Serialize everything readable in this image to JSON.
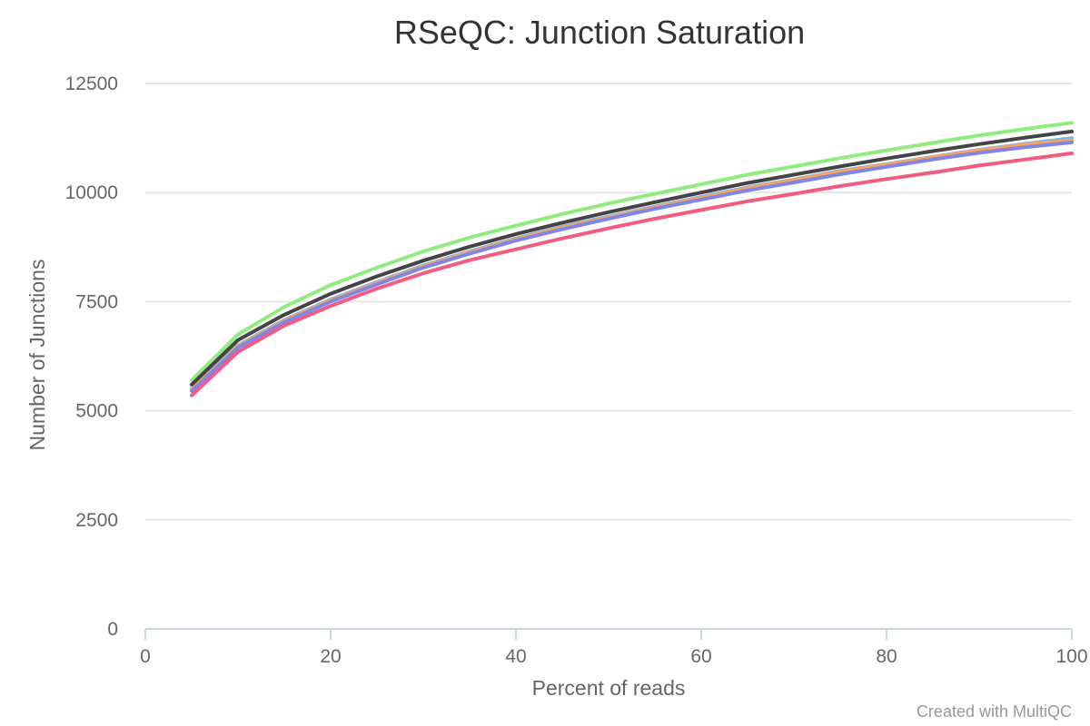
{
  "chart_data": {
    "type": "line",
    "title": "RSeQC: Junction Saturation",
    "xlabel": "Percent of reads",
    "ylabel": "Number of Junctions",
    "xlim": [
      0,
      100
    ],
    "ylim": [
      0,
      12500
    ],
    "xticks": [
      "0",
      "20",
      "40",
      "60",
      "80",
      "100"
    ],
    "yticks": [
      "0",
      "2500",
      "5000",
      "7500",
      "10000",
      "12500"
    ],
    "grid": true,
    "credits": "Created with MultiQC",
    "x": [
      5,
      10,
      15,
      20,
      25,
      30,
      35,
      40,
      45,
      50,
      55,
      60,
      65,
      70,
      75,
      80,
      85,
      90,
      95,
      100
    ],
    "series": [
      {
        "color": "#7cb5ec",
        "values": [
          5500,
          6500,
          7080,
          7550,
          7950,
          8330,
          8650,
          8950,
          9220,
          9450,
          9680,
          9900,
          10120,
          10300,
          10500,
          10650,
          10820,
          10980,
          11120,
          11250
        ]
      },
      {
        "color": "#f7a35c",
        "values": [
          5480,
          6480,
          7060,
          7530,
          7930,
          8310,
          8630,
          8930,
          9200,
          9430,
          9660,
          9880,
          10100,
          10290,
          10480,
          10640,
          10810,
          10970,
          11100,
          11200
        ]
      },
      {
        "color": "#8085e9",
        "values": [
          5450,
          6450,
          7030,
          7500,
          7900,
          8280,
          8600,
          8900,
          9160,
          9400,
          9630,
          9840,
          10050,
          10230,
          10420,
          10590,
          10760,
          10910,
          11040,
          11150
        ]
      },
      {
        "color": "#f15c80",
        "values": [
          5350,
          6350,
          6950,
          7400,
          7800,
          8150,
          8450,
          8700,
          8950,
          9180,
          9400,
          9600,
          9800,
          9970,
          10150,
          10310,
          10460,
          10620,
          10760,
          10900
        ]
      },
      {
        "color": "#90ed7d",
        "values": [
          5700,
          6750,
          7380,
          7880,
          8280,
          8650,
          8970,
          9240,
          9510,
          9750,
          9970,
          10190,
          10410,
          10600,
          10790,
          10970,
          11140,
          11310,
          11460,
          11600
        ]
      },
      {
        "color": "#434348",
        "values": [
          5600,
          6620,
          7200,
          7680,
          8080,
          8440,
          8760,
          9050,
          9310,
          9550,
          9780,
          10000,
          10220,
          10410,
          10600,
          10780,
          10950,
          11110,
          11260,
          11400
        ]
      }
    ]
  }
}
